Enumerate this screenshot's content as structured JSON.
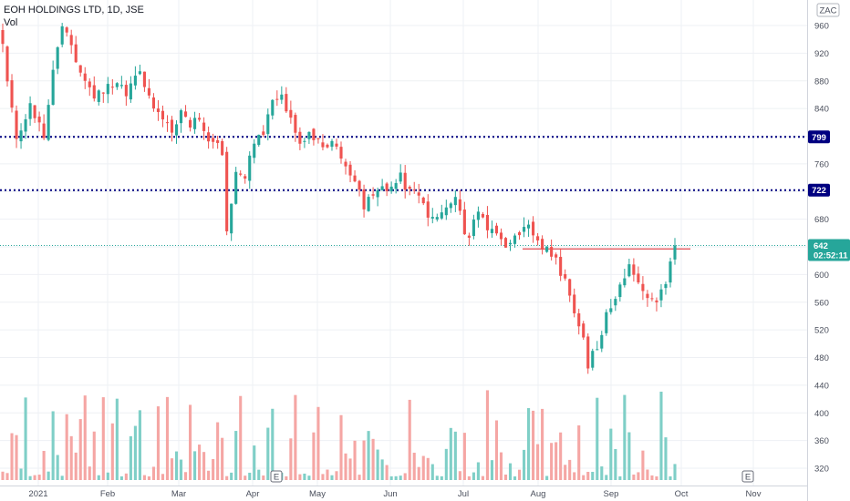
{
  "header": {
    "symbol_line": "EOH HOLDINGS LTD, 1D, JSE",
    "volume_label": "Vol",
    "currency_badge": "ZAC"
  },
  "colors": {
    "up": "#26a69a",
    "down": "#ef5350",
    "up_volume": "#7fcfc7",
    "down_volume": "#f5a6a4",
    "level_line": "#000080",
    "resistance_line": "#e0484f",
    "price_tag": "#26a69a",
    "grid": "#eef0f4"
  },
  "markers": {
    "event_icon_label": "E"
  },
  "chart_data": {
    "type": "candlestick",
    "title": "EOH HOLDINGS LTD, 1D, JSE",
    "price_scale": {
      "ylim": [
        300,
        985
      ],
      "ticks": [
        320,
        360,
        400,
        440,
        480,
        520,
        560,
        600,
        640,
        680,
        720,
        760,
        800,
        840,
        880,
        920,
        960
      ]
    },
    "x_ticks": [
      "2021",
      "Feb",
      "Mar",
      "Apr",
      "May",
      "Jun",
      "Jul",
      "Aug",
      "Sep",
      "Oct",
      "Nov"
    ],
    "horizontal_levels": [
      {
        "value": 799,
        "label": "799"
      },
      {
        "value": 722,
        "label": "722"
      }
    ],
    "resistance_line": {
      "value": 637,
      "from": "Aug",
      "to": "Oct"
    },
    "last_price": {
      "value": 642,
      "label": "642",
      "countdown": "02:52:11"
    },
    "price_path": [
      [
        0,
        930
      ],
      [
        3,
        790
      ],
      [
        6,
        840
      ],
      [
        9,
        800
      ],
      [
        11,
        900
      ],
      [
        13,
        960
      ],
      [
        15,
        930
      ],
      [
        18,
        880
      ],
      [
        20,
        860
      ],
      [
        23,
        870
      ],
      [
        25,
        880
      ],
      [
        27,
        860
      ],
      [
        30,
        890
      ],
      [
        32,
        860
      ],
      [
        35,
        820
      ],
      [
        37,
        810
      ],
      [
        39,
        840
      ],
      [
        41,
        815
      ],
      [
        43,
        830
      ],
      [
        45,
        800
      ],
      [
        48,
        780
      ],
      [
        49,
        660
      ],
      [
        51,
        750
      ],
      [
        53,
        740
      ],
      [
        55,
        790
      ],
      [
        57,
        800
      ],
      [
        59,
        850
      ],
      [
        61,
        860
      ],
      [
        63,
        820
      ],
      [
        65,
        790
      ],
      [
        67,
        800
      ],
      [
        69,
        790
      ],
      [
        71,
        790
      ],
      [
        73,
        780
      ],
      [
        75,
        760
      ],
      [
        77,
        740
      ],
      [
        79,
        700
      ],
      [
        81,
        710
      ],
      [
        83,
        720
      ],
      [
        85,
        730
      ],
      [
        87,
        740
      ],
      [
        89,
        720
      ],
      [
        91,
        710
      ],
      [
        93,
        690
      ],
      [
        95,
        685
      ],
      [
        97,
        690
      ],
      [
        99,
        715
      ],
      [
        100,
        700
      ],
      [
        101,
        665
      ],
      [
        102,
        660
      ],
      [
        104,
        690
      ],
      [
        107,
        660
      ],
      [
        109,
        650
      ],
      [
        111,
        640
      ],
      [
        113,
        660
      ],
      [
        115,
        670
      ],
      [
        117,
        650
      ],
      [
        119,
        635
      ],
      [
        121,
        620
      ],
      [
        123,
        590
      ],
      [
        125,
        540
      ],
      [
        127,
        510
      ],
      [
        128,
        470
      ],
      [
        130,
        500
      ],
      [
        132,
        540
      ],
      [
        134,
        570
      ],
      [
        136,
        600
      ],
      [
        137,
        620
      ],
      [
        139,
        590
      ],
      [
        141,
        560
      ],
      [
        143,
        565
      ],
      [
        145,
        580
      ],
      [
        147,
        642
      ]
    ]
  }
}
